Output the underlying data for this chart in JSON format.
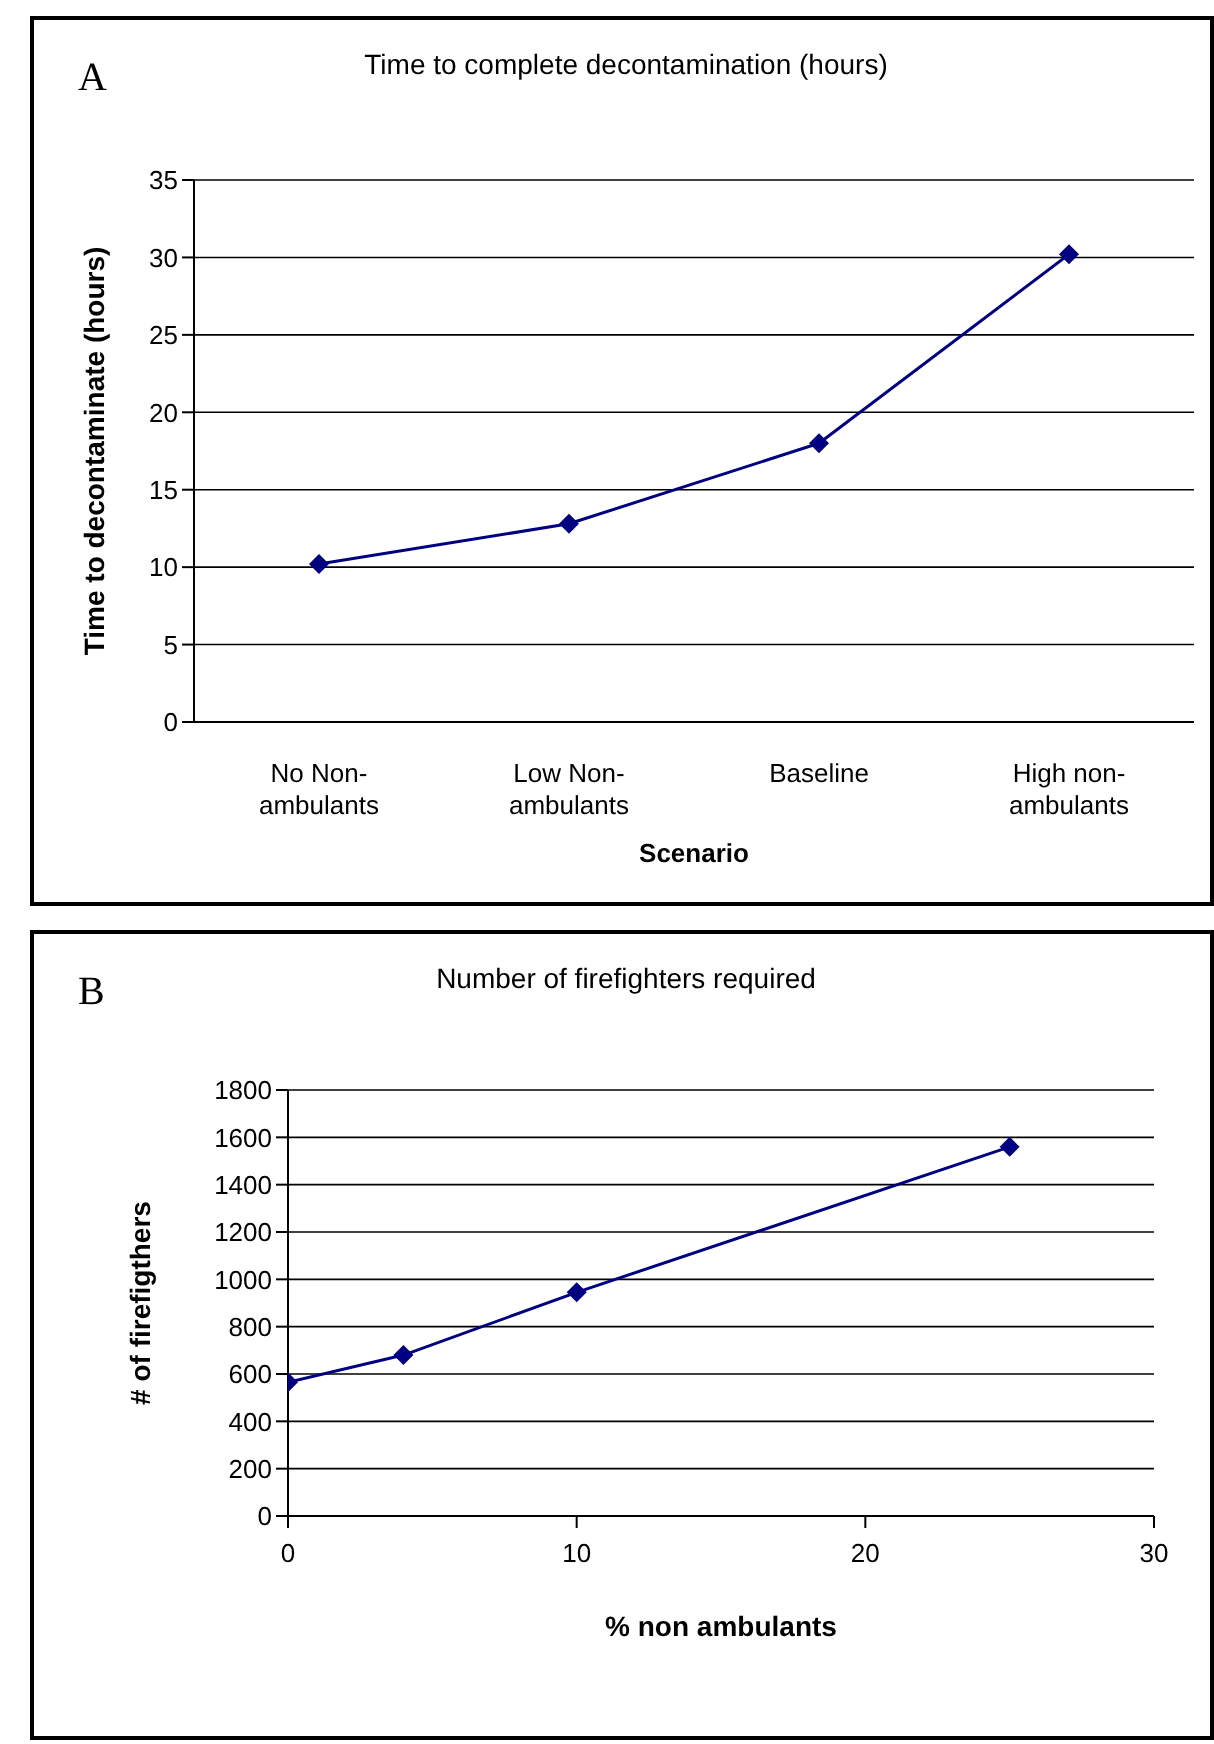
{
  "chart_data": [
    {
      "type": "line",
      "title": "Time to complete decontamination (hours)",
      "xlabel": "Scenario",
      "ylabel": "Time to decontaminate (hours)",
      "annotations": [
        "A"
      ],
      "categories": [
        "No Non-ambulants",
        "Low Non-ambulants",
        "Baseline",
        "High non-ambulants"
      ],
      "series": [
        {
          "color": "#000080",
          "values": [
            10.2,
            12.8,
            18,
            30.2
          ]
        }
      ],
      "ylim": [
        0,
        35
      ],
      "yticks": [
        0,
        5,
        10,
        15,
        20,
        25,
        30,
        35
      ],
      "grid": "y",
      "legend": false,
      "marker": "diamond",
      "line_style": "solid"
    },
    {
      "type": "line",
      "title": "Number of firefighters required",
      "xlabel": "% non ambulants",
      "ylabel": "# of firefigthers",
      "annotations": [
        "B"
      ],
      "x": [
        0,
        4,
        10,
        25
      ],
      "series": [
        {
          "color": "#000080",
          "values": [
            565,
            680,
            945,
            1560
          ]
        }
      ],
      "xlim": [
        0,
        30
      ],
      "xticks": [
        0,
        10,
        20,
        30
      ],
      "ylim": [
        0,
        1800
      ],
      "yticks": [
        0,
        200,
        400,
        600,
        800,
        1000,
        1200,
        1400,
        1600,
        1800
      ],
      "grid": "y",
      "legend": false,
      "marker": "diamond",
      "line_style": "solid"
    }
  ]
}
